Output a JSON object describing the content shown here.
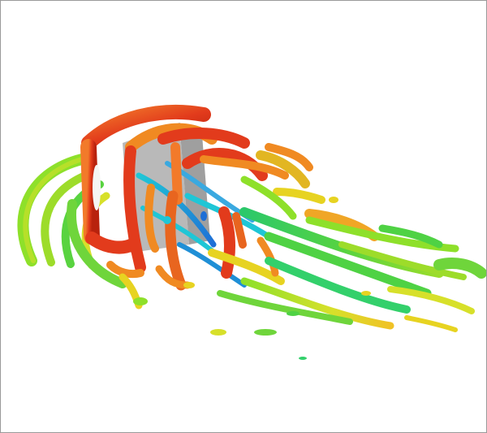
{
  "image": {
    "description_free": true,
    "background_color": "#ffffff",
    "border_color": "#9a9a9a",
    "colormap": [
      "#1f6fd6",
      "#1fc6d6",
      "#33d06b",
      "#8ee02a",
      "#e7d321",
      "#f08a22",
      "#e23b1c"
    ],
    "accent_colors": {
      "red": "#e23b1c",
      "orange": "#f08a22",
      "yellow": "#e7d321",
      "green": "#33d06b",
      "lime": "#8ee02a",
      "cyan": "#1fc6d6",
      "blue": "#1f6fd6",
      "body_gray": "#b9b9b9"
    }
  }
}
